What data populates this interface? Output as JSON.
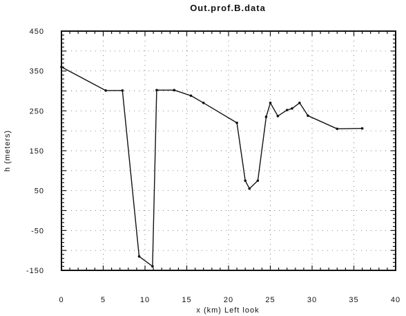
{
  "chart_data": {
    "type": "line",
    "title": "Out.prof.B.data",
    "xlabel": "x (km) Left look",
    "ylabel": "h (meters)",
    "xlim": [
      0,
      40
    ],
    "ylim": [
      -150,
      450
    ],
    "x_ticks": [
      0,
      5,
      10,
      15,
      20,
      25,
      30,
      35,
      40
    ],
    "y_ticks": [
      450,
      350,
      250,
      150,
      50,
      -50,
      -150
    ],
    "y_tick_labels": [
      "450",
      "350",
      "250",
      "150",
      "50",
      "-50",
      "-150"
    ],
    "grid": "dotted",
    "series": [
      {
        "points": [
          [
            0,
            360
          ],
          [
            5.3,
            301
          ],
          [
            7.3,
            301
          ],
          [
            9.3,
            -115
          ],
          [
            10.9,
            -140
          ],
          [
            11.4,
            302
          ],
          [
            13.5,
            302
          ],
          [
            15.5,
            288
          ],
          [
            17.0,
            270
          ],
          [
            21.0,
            220
          ],
          [
            22.0,
            75
          ],
          [
            22.5,
            55
          ],
          [
            23.5,
            75
          ],
          [
            24.5,
            235
          ],
          [
            25.0,
            270
          ],
          [
            25.9,
            237
          ],
          [
            27.0,
            252
          ],
          [
            27.6,
            256
          ],
          [
            28.5,
            270
          ],
          [
            29.5,
            238
          ],
          [
            33.0,
            205
          ],
          [
            36.0,
            206
          ]
        ]
      }
    ]
  }
}
